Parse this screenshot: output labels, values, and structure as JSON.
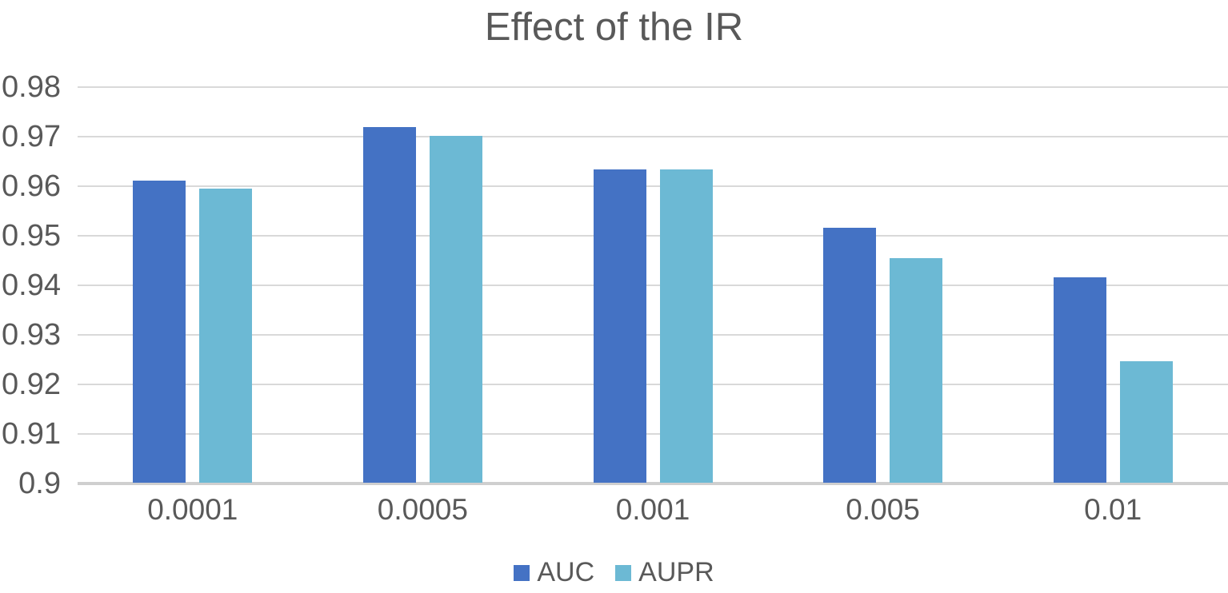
{
  "chart_data": {
    "type": "bar",
    "title": "Effect of the IR",
    "categories": [
      "0.0001",
      "0.0005",
      "0.001",
      "0.005",
      "0.01"
    ],
    "series": [
      {
        "name": "AUC",
        "color": "#4472C4",
        "values": [
          0.961,
          0.9717,
          0.9633,
          0.9515,
          0.9415
        ]
      },
      {
        "name": "AUPR",
        "color": "#6CB9D4",
        "values": [
          0.9594,
          0.97,
          0.9633,
          0.9453,
          0.9245
        ]
      }
    ],
    "xlabel": "",
    "ylabel": "",
    "ylim": [
      0.9,
      0.98
    ],
    "yticks": [
      "0.98",
      "0.97",
      "0.96",
      "0.95",
      "0.94",
      "0.93",
      "0.92",
      "0.91",
      "0.9"
    ],
    "grid": true,
    "legend_position": "bottom",
    "style": {
      "text_color": "#595959",
      "gridline_color": "#D9D9D9",
      "axis_line_color": "#CFCFCF",
      "background_color": "#FFFFFF"
    }
  }
}
